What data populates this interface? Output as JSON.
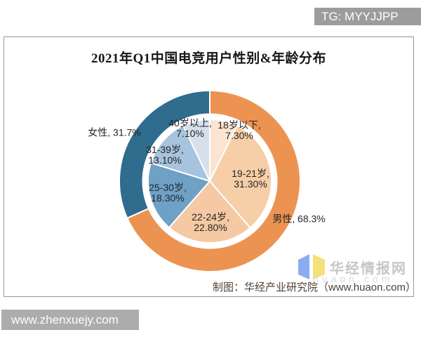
{
  "page": {
    "tg_badge": "TG: MYYJJPP",
    "bottom_bar_url": "www.zhenxuejy.com"
  },
  "watermark": {
    "brand": "华经情报网",
    "domain": "huaon.com",
    "logo_icon": "open-book-logo-icon",
    "logo_colors": {
      "left": "#7da4f0",
      "right": "#f6db6d"
    }
  },
  "chart_data": {
    "type": "pie",
    "subtype": "donut-ring-with-inner-pie",
    "title": "2021年Q1中国电竞用户性别&年龄分布",
    "source_caption": "制图：华经产业研究院（www.huaon.com）",
    "legend_position": "none",
    "direction": "clockwise",
    "start_angle_deg": 0,
    "series": [
      {
        "name": "性别",
        "ring": "outer",
        "slices": [
          {
            "label": "男性",
            "value": 68.3,
            "display": "男性, 68.3%",
            "color": "#ec9351"
          },
          {
            "label": "女性",
            "value": 31.7,
            "display": "女性, 31.7%",
            "color": "#2f6c8d"
          }
        ]
      },
      {
        "name": "年龄",
        "ring": "inner",
        "slices": [
          {
            "label": "18岁以下",
            "value": 7.3,
            "display_line1": "18岁以下,",
            "display_line2": "7.30%",
            "color": "#fbe4d1"
          },
          {
            "label": "19-21岁",
            "value": 31.3,
            "display_line1": "19-21岁,",
            "display_line2": "31.30%",
            "color": "#f6cea7"
          },
          {
            "label": "22-24岁",
            "value": 22.8,
            "display_line1": "22-24岁,",
            "display_line2": "22.80%",
            "color": "#f4c9a3"
          },
          {
            "label": "25-30岁",
            "value": 18.3,
            "display_line1": "25-30岁,",
            "display_line2": "18.30%",
            "color": "#6fa0c6"
          },
          {
            "label": "31-39岁",
            "value": 13.1,
            "display_line1": "31-39岁,",
            "display_line2": "13.10%",
            "color": "#a7c3dd"
          },
          {
            "label": "40岁以上",
            "value": 7.1,
            "display_line1": "40岁以上,",
            "display_line2": "7.10%",
            "color": "#d5e0eb"
          }
        ]
      }
    ]
  }
}
